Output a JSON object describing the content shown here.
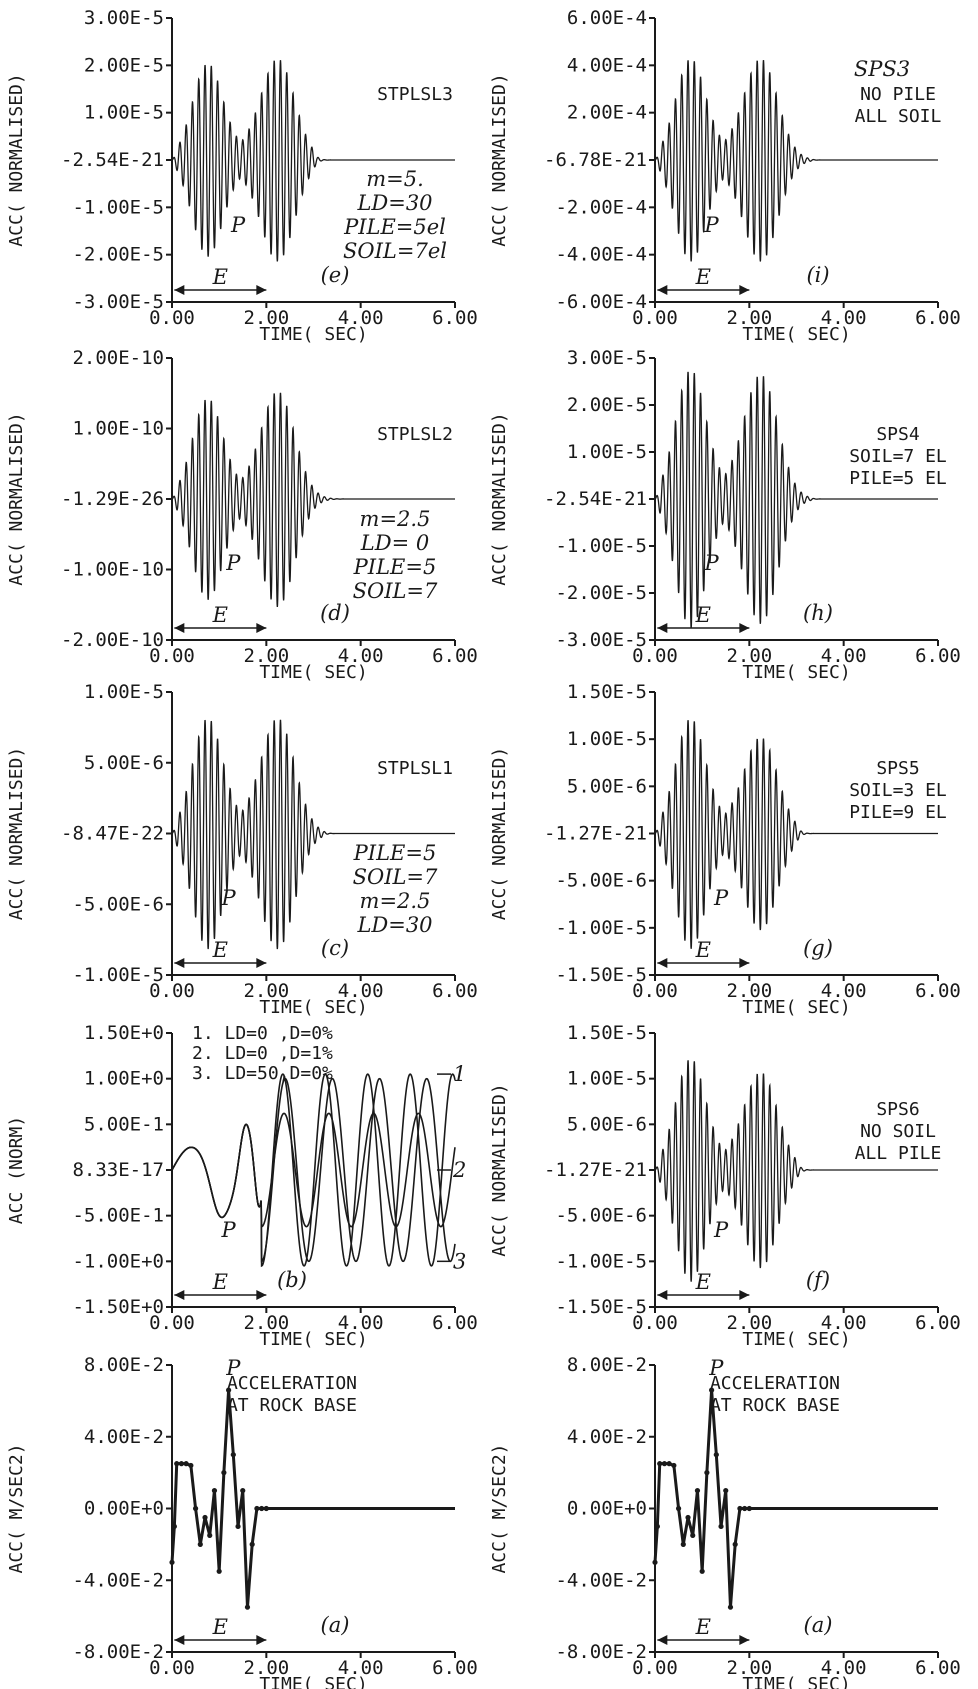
{
  "chart_data": [
    {
      "id": "e",
      "type": "line",
      "col": 0,
      "row": 0,
      "kind": "twin",
      "ylabel": "ACC( NORMALISED)",
      "xlabel": "TIME( SEC)",
      "yticks": [
        "3.00E-5",
        "2.00E-5",
        "1.00E-5",
        "-2.54E-21",
        "-1.00E-5",
        "-2.00E-5",
        "-3.00E-5"
      ],
      "xticks": [
        "0.00",
        "2.00",
        "4.00",
        "6.00"
      ],
      "ylim": [
        -3e-05,
        3e-05
      ],
      "xlim": [
        0,
        6
      ],
      "peaks": [
        2e-05,
        2.1e-05
      ],
      "burst_end": 3.0,
      "labels": [
        "STPLSL3"
      ],
      "notes": [
        "m=5.",
        "LD=30",
        "PILE=5el",
        "SOIL=7el"
      ],
      "panel": "(e)",
      "p_mark": "P",
      "e_mark": "E",
      "p_time": 1.4
    },
    {
      "id": "i",
      "type": "line",
      "col": 1,
      "row": 0,
      "kind": "twin",
      "ylabel": "ACC( NORMALISED)",
      "xlabel": "TIME( SEC)",
      "yticks": [
        "6.00E-4",
        "4.00E-4",
        "2.00E-4",
        "-6.78E-21",
        "-2.00E-4",
        "-4.00E-4",
        "-6.00E-4"
      ],
      "xticks": [
        "0.00",
        "2.00",
        "4.00",
        "6.00"
      ],
      "ylim": [
        -0.0006,
        0.0006
      ],
      "xlim": [
        0,
        6
      ],
      "peaks": [
        0.00042,
        0.00042
      ],
      "burst_end": 3.3,
      "labels": [
        "NO PILE",
        "ALL SOIL"
      ],
      "notes": [
        "SPS3"
      ],
      "panel": "(i)",
      "p_mark": "P",
      "e_mark": "E",
      "p_time": 1.2
    },
    {
      "id": "d",
      "type": "line",
      "col": 0,
      "row": 1,
      "kind": "twin",
      "ylabel": "ACC( NORMALISED)",
      "xlabel": "TIME( SEC)",
      "yticks": [
        "2.00E-10",
        "1.00E-10",
        "-1.29E-26",
        "-1.00E-10",
        "-2.00E-10"
      ],
      "xticks": [
        "0.00",
        "2.00",
        "4.00",
        "6.00"
      ],
      "ylim": [
        -2e-10,
        2e-10
      ],
      "xlim": [
        0,
        6
      ],
      "peaks": [
        1.4e-10,
        1.5e-10
      ],
      "burst_end": 3.8,
      "labels": [
        "STPLSL2"
      ],
      "notes": [
        "m=2.5",
        "LD= 0",
        "PILE=5",
        "SOIL=7"
      ],
      "panel": "(d)",
      "p_mark": "P",
      "e_mark": "E",
      "p_time": 1.3
    },
    {
      "id": "h",
      "type": "line",
      "col": 1,
      "row": 1,
      "kind": "twin",
      "ylabel": "ACC( NORMALISED)",
      "xlabel": "TIME( SEC)",
      "yticks": [
        "3.00E-5",
        "2.00E-5",
        "1.00E-5",
        "-2.54E-21",
        "-1.00E-5",
        "-2.00E-5",
        "-3.00E-5"
      ],
      "xticks": [
        "0.00",
        "2.00",
        "4.00",
        "6.00"
      ],
      "ylim": [
        -3e-05,
        3e-05
      ],
      "xlim": [
        0,
        6
      ],
      "peaks": [
        2.7e-05,
        2.6e-05
      ],
      "burst_end": 3.3,
      "labels": [
        "SPS4",
        "SOIL=7 EL",
        "PILE=5 EL"
      ],
      "notes": [],
      "panel": "(h)",
      "p_mark": "P",
      "e_mark": "E",
      "p_time": 1.2
    },
    {
      "id": "c",
      "type": "line",
      "col": 0,
      "row": 2,
      "kind": "twin",
      "ylabel": "ACC( NORMALISED)",
      "xlabel": "TIME( SEC)",
      "yticks": [
        "1.00E-5",
        "5.00E-6",
        "-8.47E-22",
        "-5.00E-6",
        "-1.00E-5"
      ],
      "xticks": [
        "0.00",
        "2.00",
        "4.00",
        "6.00"
      ],
      "ylim": [
        -1e-05,
        1e-05
      ],
      "xlim": [
        0,
        6
      ],
      "peaks": [
        8e-06,
        8e-06
      ],
      "burst_end": 3.2,
      "labels": [
        "STPLSL1"
      ],
      "notes": [
        "PILE=5",
        "SOIL=7",
        "m=2.5",
        "LD=30"
      ],
      "panel": "(c)",
      "p_mark": "P",
      "e_mark": "E",
      "p_time": 1.2
    },
    {
      "id": "g",
      "type": "line",
      "col": 1,
      "row": 2,
      "kind": "twin",
      "ylabel": "ACC( NORMALISED)",
      "xlabel": "TIME( SEC)",
      "yticks": [
        "1.50E-5",
        "1.00E-5",
        "5.00E-6",
        "-1.27E-21",
        "-5.00E-6",
        "-1.00E-5",
        "-1.50E-5"
      ],
      "xticks": [
        "0.00",
        "2.00",
        "4.00",
        "6.00"
      ],
      "ylim": [
        -1.5e-05,
        1.5e-05
      ],
      "xlim": [
        0,
        6
      ],
      "peaks": [
        1.2e-05,
        1e-05
      ],
      "burst_end": 3.0,
      "labels": [
        "SPS5",
        "SOIL=3 EL",
        "PILE=9 EL"
      ],
      "notes": [],
      "panel": "(g)",
      "p_mark": "P",
      "e_mark": "E",
      "p_time": 1.4
    },
    {
      "id": "b",
      "type": "line",
      "col": 0,
      "row": 3,
      "kind": "steady",
      "ylabel": "ACC (NORM)",
      "xlabel": "TIME( SEC)",
      "yticks": [
        "1.50E+0",
        "1.00E+0",
        "5.00E-1",
        "8.33E-17",
        "-5.00E-1",
        "-1.00E+0",
        "-1.50E+0"
      ],
      "xticks": [
        "0.00",
        "2.00",
        "4.00",
        "6.00"
      ],
      "ylim": [
        -1.5,
        1.5
      ],
      "xlim": [
        0,
        6
      ],
      "legend": [
        "1. LD=0 ,D=0%",
        "2. LD=0 ,D=1%",
        "3. LD=50,D=0%"
      ],
      "curve_tags": [
        "1",
        "2",
        "3"
      ],
      "series": [
        {
          "name": "1",
          "amplitude": 1.05,
          "period": 0.9
        },
        {
          "name": "2",
          "amplitude": 0.62,
          "period": 0.95
        },
        {
          "name": "3",
          "amplitude": 1.0,
          "period": 1.0
        }
      ],
      "panel": "(b)",
      "p_mark": "P",
      "e_mark": "E",
      "p_time": 1.2
    },
    {
      "id": "f",
      "type": "line",
      "col": 1,
      "row": 3,
      "kind": "twin",
      "ylabel": "ACC( NORMALISED)",
      "xlabel": "TIME( SEC)",
      "yticks": [
        "1.50E-5",
        "1.00E-5",
        "5.00E-6",
        "-1.27E-21",
        "-5.00E-6",
        "-1.00E-5",
        "-1.50E-5"
      ],
      "xticks": [
        "0.00",
        "2.00",
        "4.00",
        "6.00"
      ],
      "ylim": [
        -1.5e-05,
        1.5e-05
      ],
      "xlim": [
        0,
        6
      ],
      "peaks": [
        1.2e-05,
        1.05e-05
      ],
      "burst_end": 3.0,
      "labels": [
        "SPS6",
        "NO SOIL",
        "ALL PILE"
      ],
      "notes": [],
      "panel": "(f)",
      "p_mark": "P",
      "e_mark": "E",
      "p_time": 1.4
    },
    {
      "id": "a-left",
      "type": "line",
      "col": 0,
      "row": 4,
      "kind": "base",
      "ylabel": "ACC( M/SEC2)",
      "xlabel": "TIME( SEC)",
      "yticks": [
        "8.00E-2",
        "4.00E-2",
        "0.00E+0",
        "-4.00E-2",
        "-8.00E-2"
      ],
      "xticks": [
        "0.00",
        "2.00",
        "4.00",
        "6.00"
      ],
      "ylim": [
        -0.08,
        0.08
      ],
      "xlim": [
        0,
        6
      ],
      "x": [
        0.0,
        0.05,
        0.1,
        0.2,
        0.3,
        0.4,
        0.5,
        0.6,
        0.7,
        0.8,
        0.9,
        1.0,
        1.1,
        1.2,
        1.3,
        1.4,
        1.5,
        1.6,
        1.7,
        1.8,
        1.9,
        2.0,
        6.0
      ],
      "y": [
        -0.03,
        -0.01,
        0.025,
        0.025,
        0.025,
        0.024,
        0.0,
        -0.02,
        -0.005,
        -0.015,
        0.01,
        -0.035,
        0.02,
        0.066,
        0.03,
        -0.01,
        0.01,
        -0.055,
        -0.02,
        0.0,
        0.0,
        0.0,
        0.0
      ],
      "labels": [
        "ACCELERATION",
        "AT ROCK BASE"
      ],
      "panel": "(a)",
      "p_mark": "P",
      "e_mark": "E",
      "p_time": 1.3
    },
    {
      "id": "a-right",
      "type": "line",
      "col": 1,
      "row": 4,
      "kind": "base",
      "ylabel": "ACC( M/SEC2)",
      "xlabel": "TIME( SEC)",
      "yticks": [
        "8.00E-2",
        "4.00E-2",
        "0.00E+0",
        "-4.00E-2",
        "-8.00E-2"
      ],
      "xticks": [
        "0.00",
        "2.00",
        "4.00",
        "6.00"
      ],
      "ylim": [
        -0.08,
        0.08
      ],
      "xlim": [
        0,
        6
      ],
      "x": [
        0.0,
        0.05,
        0.1,
        0.2,
        0.3,
        0.4,
        0.5,
        0.6,
        0.7,
        0.8,
        0.9,
        1.0,
        1.1,
        1.2,
        1.3,
        1.4,
        1.5,
        1.6,
        1.7,
        1.8,
        1.9,
        2.0,
        6.0
      ],
      "y": [
        -0.03,
        -0.01,
        0.025,
        0.025,
        0.025,
        0.024,
        0.0,
        -0.02,
        -0.005,
        -0.015,
        0.01,
        -0.035,
        0.02,
        0.066,
        0.03,
        -0.01,
        0.01,
        -0.055,
        -0.02,
        0.0,
        0.0,
        0.0,
        0.0
      ],
      "labels": [
        "ACCELERATION",
        "AT ROCK BASE"
      ],
      "panel": "(a)",
      "p_mark": "P",
      "e_mark": "E",
      "p_time": 1.3
    }
  ]
}
